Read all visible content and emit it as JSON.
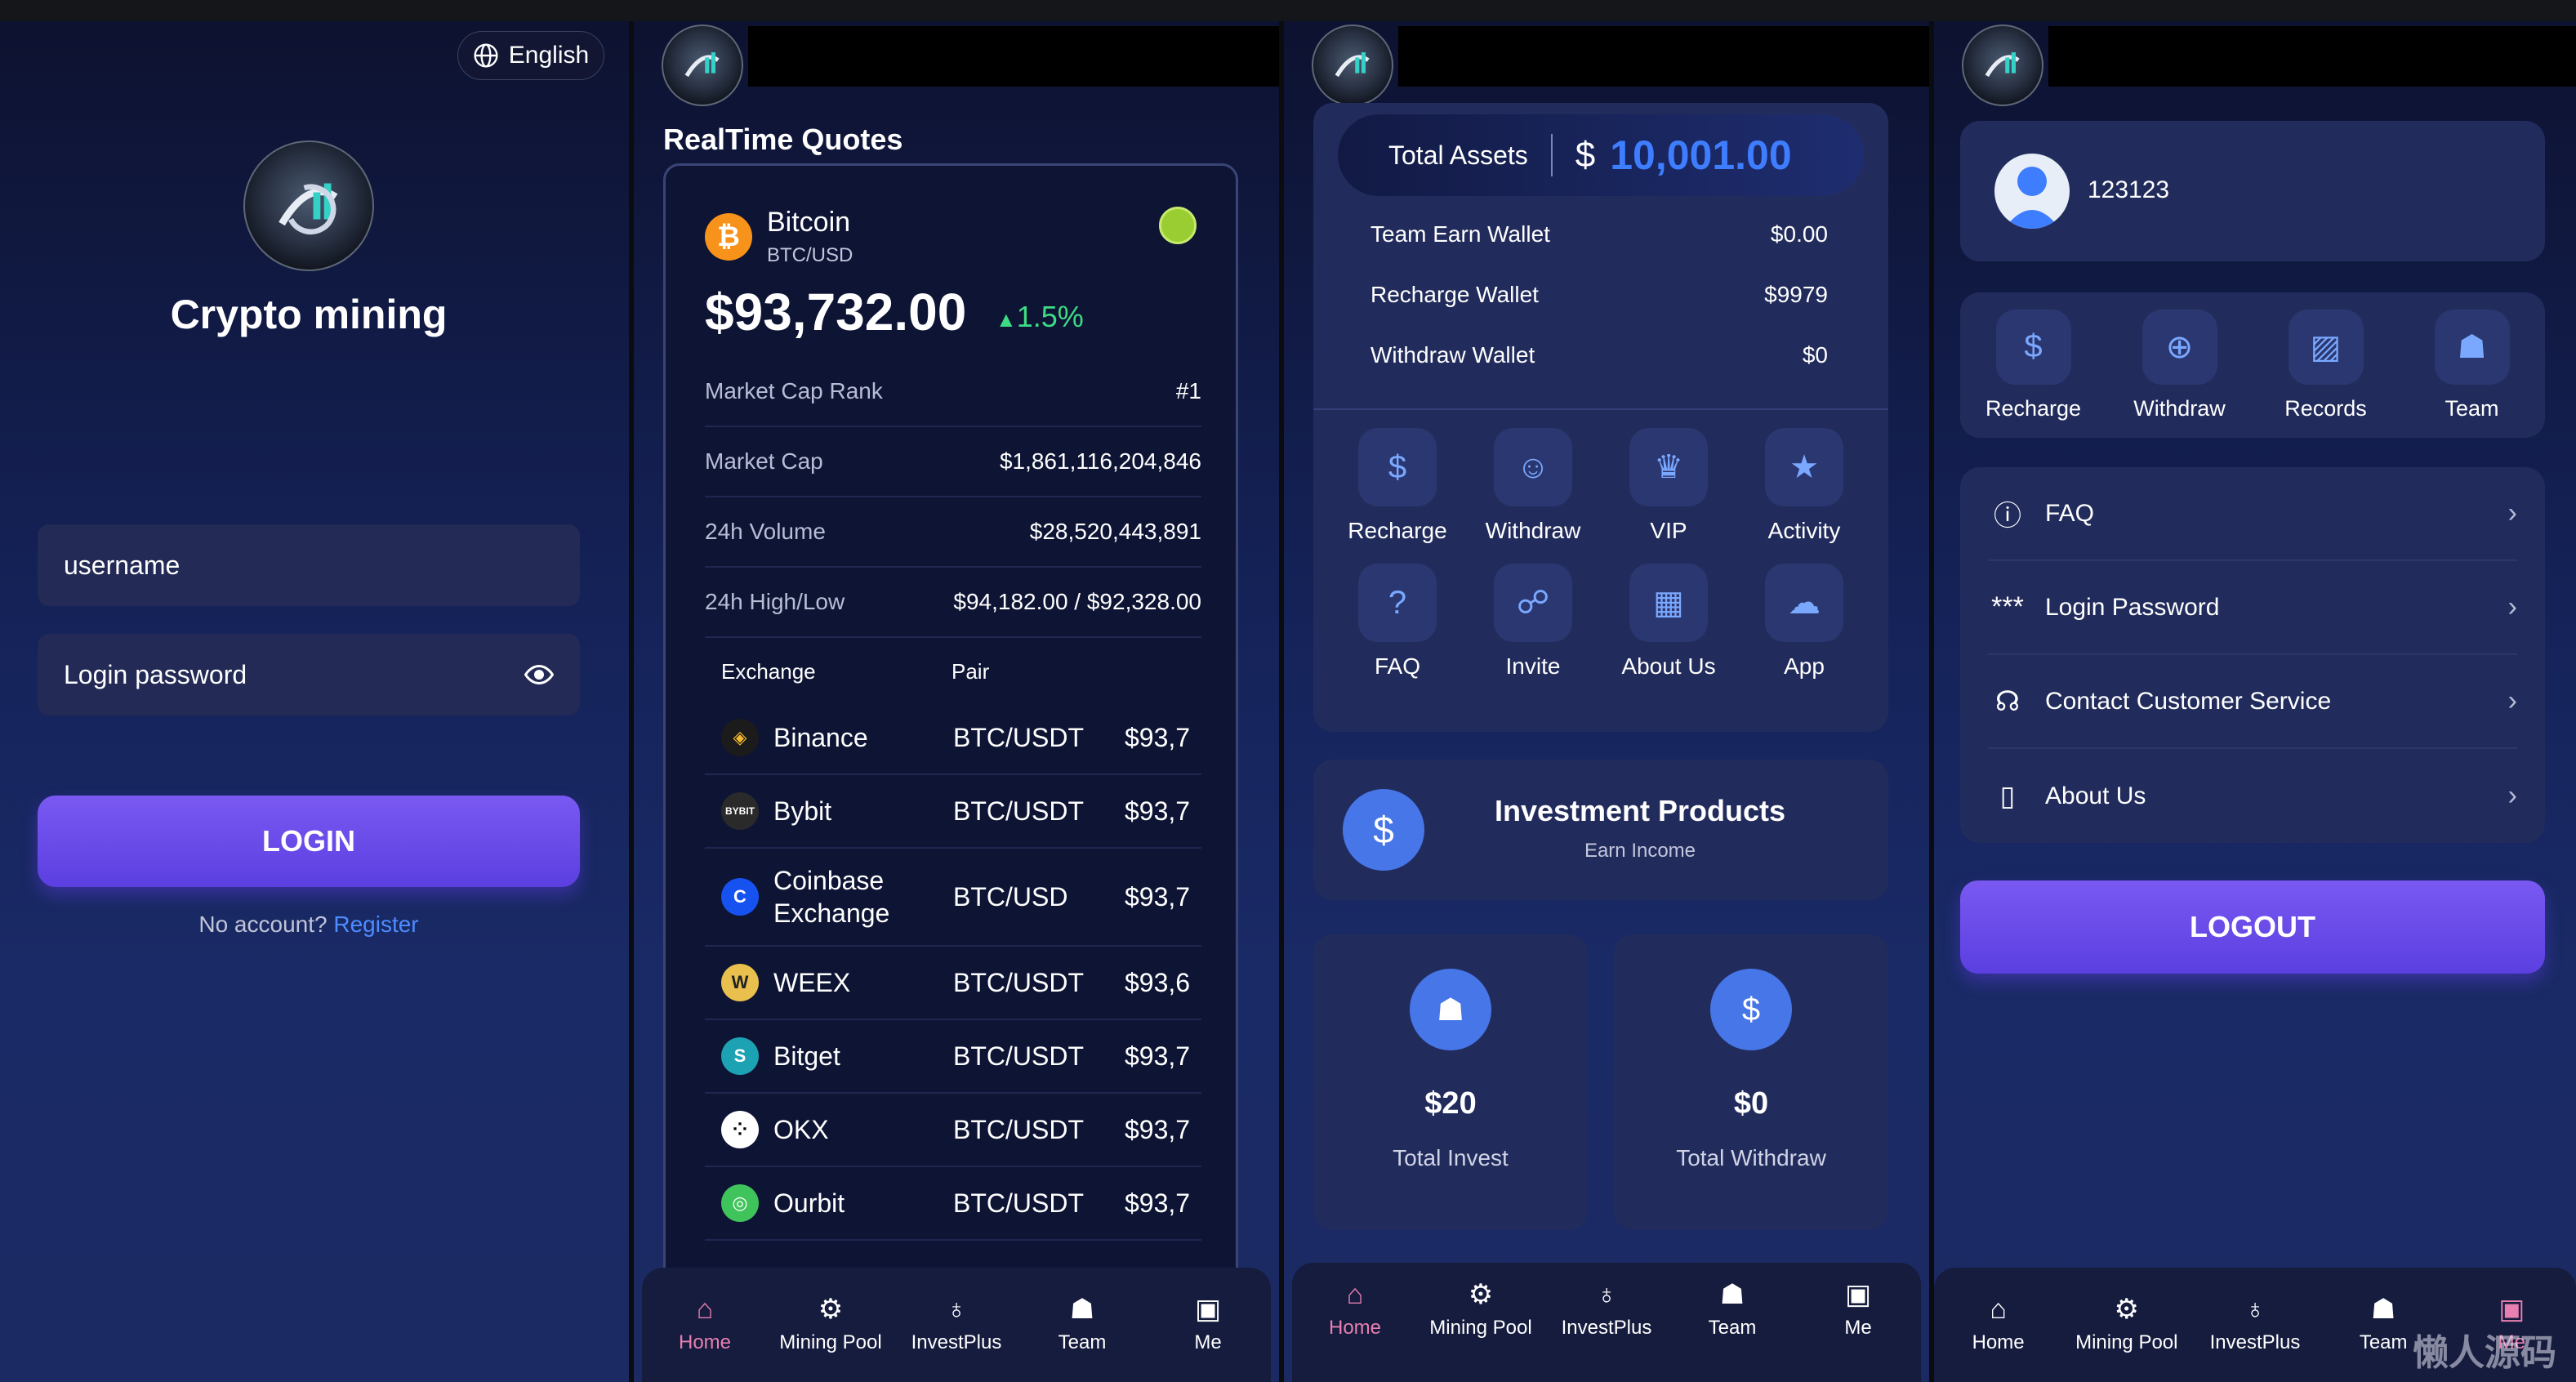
{
  "login": {
    "language": "English",
    "app_name": "Crypto mining",
    "username_placeholder": "username",
    "password_placeholder": "Login password",
    "login_button": "LOGIN",
    "no_account": "No account?",
    "register_link": "Register"
  },
  "quotes": {
    "title": "RealTime Quotes",
    "coin_name": "Bitcoin",
    "coin_pair": "BTC/USD",
    "price": "$93,732.00",
    "change": "1.5%",
    "stats": [
      {
        "label": "Market Cap Rank",
        "value": "#1"
      },
      {
        "label": "Market Cap",
        "value": "$1,861,116,204,846"
      },
      {
        "label": "24h Volume",
        "value": "$28,520,443,891"
      },
      {
        "label": "24h High/Low",
        "value": "$94,182.00 / $92,328.00"
      }
    ],
    "table_headers": {
      "exchange": "Exchange",
      "pair": "Pair"
    },
    "exchanges": [
      {
        "name": "Binance",
        "pair": "BTC/USDT",
        "price": "$93,7",
        "color": "#f3ba2f",
        "icon": "binance-icon"
      },
      {
        "name": "Bybit",
        "pair": "BTC/USDT",
        "price": "$93,7",
        "color": "#1b1b1b",
        "icon": "bybit-icon"
      },
      {
        "name": "Coinbase Exchange",
        "pair": "BTC/USD",
        "price": "$93,7",
        "color": "#1652f0",
        "icon": "coinbase-icon"
      },
      {
        "name": "WEEX",
        "pair": "BTC/USDT",
        "price": "$93,6",
        "color": "#e9c04d",
        "icon": "weex-icon"
      },
      {
        "name": "Bitget",
        "pair": "BTC/USDT",
        "price": "$93,7",
        "color": "#1da2b4",
        "icon": "bitget-icon"
      },
      {
        "name": "OKX",
        "pair": "BTC/USDT",
        "price": "$93,7",
        "color": "#ffffff",
        "icon": "okx-icon"
      },
      {
        "name": "Ourbit",
        "pair": "BTC/USDT",
        "price": "$93,7",
        "color": "#3ec45a",
        "icon": "ourbit-icon"
      }
    ]
  },
  "nav": {
    "items": [
      "Home",
      "Mining Pool",
      "InvestPlus",
      "Team",
      "Me"
    ]
  },
  "home": {
    "total_assets_label": "Total Assets",
    "currency": "$",
    "total_assets_value": "10,001.00",
    "wallets": [
      {
        "label": "Team Earn Wallet",
        "value": "$0.00"
      },
      {
        "label": "Recharge Wallet",
        "value": "$9979"
      },
      {
        "label": "Withdraw Wallet",
        "value": "$0"
      }
    ],
    "grid": [
      "Recharge",
      "Withdraw",
      "VIP",
      "Activity",
      "FAQ",
      "Invite",
      "About Us",
      "App"
    ],
    "invest_title": "Investment Products",
    "invest_subtitle": "Earn Income",
    "total_invest_value": "$20",
    "total_invest_label": "Total Invest",
    "total_withdraw_value": "$0",
    "total_withdraw_label": "Total Withdraw"
  },
  "me": {
    "user_id": "123123",
    "actions": [
      "Recharge",
      "Withdraw",
      "Records",
      "Team"
    ],
    "menu": [
      "FAQ",
      "Login Password",
      "Contact Customer Service",
      "About Us"
    ],
    "logout_button": "LOGOUT",
    "watermark": "懒人源码"
  },
  "colors": {
    "accent_purple": "#6a4ae9",
    "positive_green": "#3ddc84",
    "link_blue": "#4d8cff",
    "active_nav": "#e87fb0",
    "assets_blue": "#3f7dff"
  }
}
